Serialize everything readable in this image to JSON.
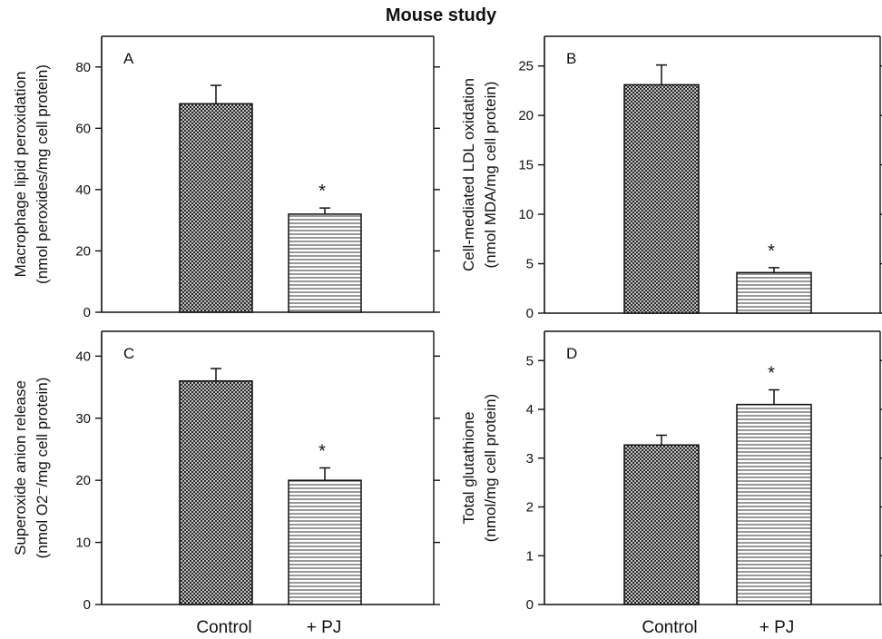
{
  "figure": {
    "title": "Mouse study",
    "categories": [
      "Control",
      "+ PJ"
    ]
  },
  "colors": {
    "axis": "#111111",
    "bar_fill": "#ffffff",
    "crosshatch": "#222222",
    "horizontal_lines": "#333333"
  },
  "chart_data": [
    {
      "type": "bar",
      "panel": "A",
      "categories": [
        "Control",
        "+ PJ"
      ],
      "values": [
        68,
        32
      ],
      "errors": [
        6,
        2
      ],
      "significant": [
        false,
        true
      ],
      "ylabel_lines": [
        "Macrophage lipid peroxidation",
        "(nmol peroxides/mg cell protein)"
      ],
      "ylim": [
        0,
        90
      ],
      "yticks": [
        0,
        20,
        40,
        60,
        80
      ],
      "patterns": [
        "crosshatch",
        "horizontal-lines"
      ],
      "annotation": "*"
    },
    {
      "type": "bar",
      "panel": "B",
      "categories": [
        "Control",
        "+ PJ"
      ],
      "values": [
        23.1,
        4.1
      ],
      "errors": [
        2,
        0.5
      ],
      "significant": [
        false,
        true
      ],
      "ylabel_lines": [
        "Cell-mediated LDL oxidation",
        "(nmol MDA/mg cell protein)"
      ],
      "ylim": [
        0,
        28
      ],
      "yticks": [
        0,
        5,
        10,
        15,
        20,
        25
      ],
      "patterns": [
        "crosshatch",
        "horizontal-lines"
      ],
      "annotation": "*"
    },
    {
      "type": "bar",
      "panel": "C",
      "categories": [
        "Control",
        "+ PJ"
      ],
      "values": [
        36,
        20
      ],
      "errors": [
        2,
        2
      ],
      "significant": [
        false,
        true
      ],
      "ylabel_lines": [
        "Superoxide anion release",
        "(nmol O2⁻/mg cell protein)"
      ],
      "ylim": [
        0,
        44
      ],
      "yticks": [
        0,
        10,
        20,
        30,
        40
      ],
      "patterns": [
        "crosshatch",
        "horizontal-lines"
      ],
      "annotation": "*"
    },
    {
      "type": "bar",
      "panel": "D",
      "categories": [
        "Control",
        "+ PJ"
      ],
      "values": [
        3.27,
        4.1
      ],
      "errors": [
        0.2,
        0.3
      ],
      "significant": [
        false,
        true
      ],
      "ylabel_lines": [
        "Total glutathione",
        "(nmol/mg cell protein)"
      ],
      "ylim": [
        0,
        5.6
      ],
      "yticks": [
        0,
        1,
        2,
        3,
        4,
        5
      ],
      "patterns": [
        "crosshatch",
        "horizontal-lines"
      ],
      "annotation": "*"
    }
  ]
}
